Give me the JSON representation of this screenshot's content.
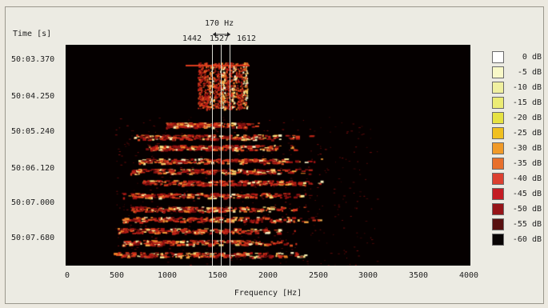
{
  "time_axis": {
    "title": "Time [s]",
    "labels": [
      "50:03.370",
      "50:04.250",
      "50:05.240",
      "50:06.120",
      "50:07.000",
      "50:07.680"
    ]
  },
  "marker": {
    "bandwidth_label": "170 Hz",
    "freq_labels": [
      "1442",
      "1527",
      "1612"
    ]
  },
  "frequency_axis": {
    "title": "Frequency [Hz]",
    "ticks": [
      "0",
      "500",
      "1000",
      "1500",
      "2000",
      "2500",
      "3000",
      "3500",
      "4000"
    ]
  },
  "legend": {
    "labels": [
      "0 dB",
      "-5 dB",
      "-10 dB",
      "-15 dB",
      "-20 dB",
      "-25 dB",
      "-30 dB",
      "-35 dB",
      "-40 dB",
      "-45 dB",
      "-50 dB",
      "-55 dB",
      "-60 dB"
    ],
    "colors": [
      "#ffffff",
      "#f8f8c8",
      "#f0f0a0",
      "#ecec74",
      "#e6e242",
      "#f0c020",
      "#f09a28",
      "#e8702c",
      "#dc4030",
      "#c41c24",
      "#961418",
      "#581010",
      "#080404"
    ]
  },
  "colors": {
    "background": "#ece9e0",
    "plot_bg": "#050000",
    "cursor_line": "#d8d8d0"
  }
}
